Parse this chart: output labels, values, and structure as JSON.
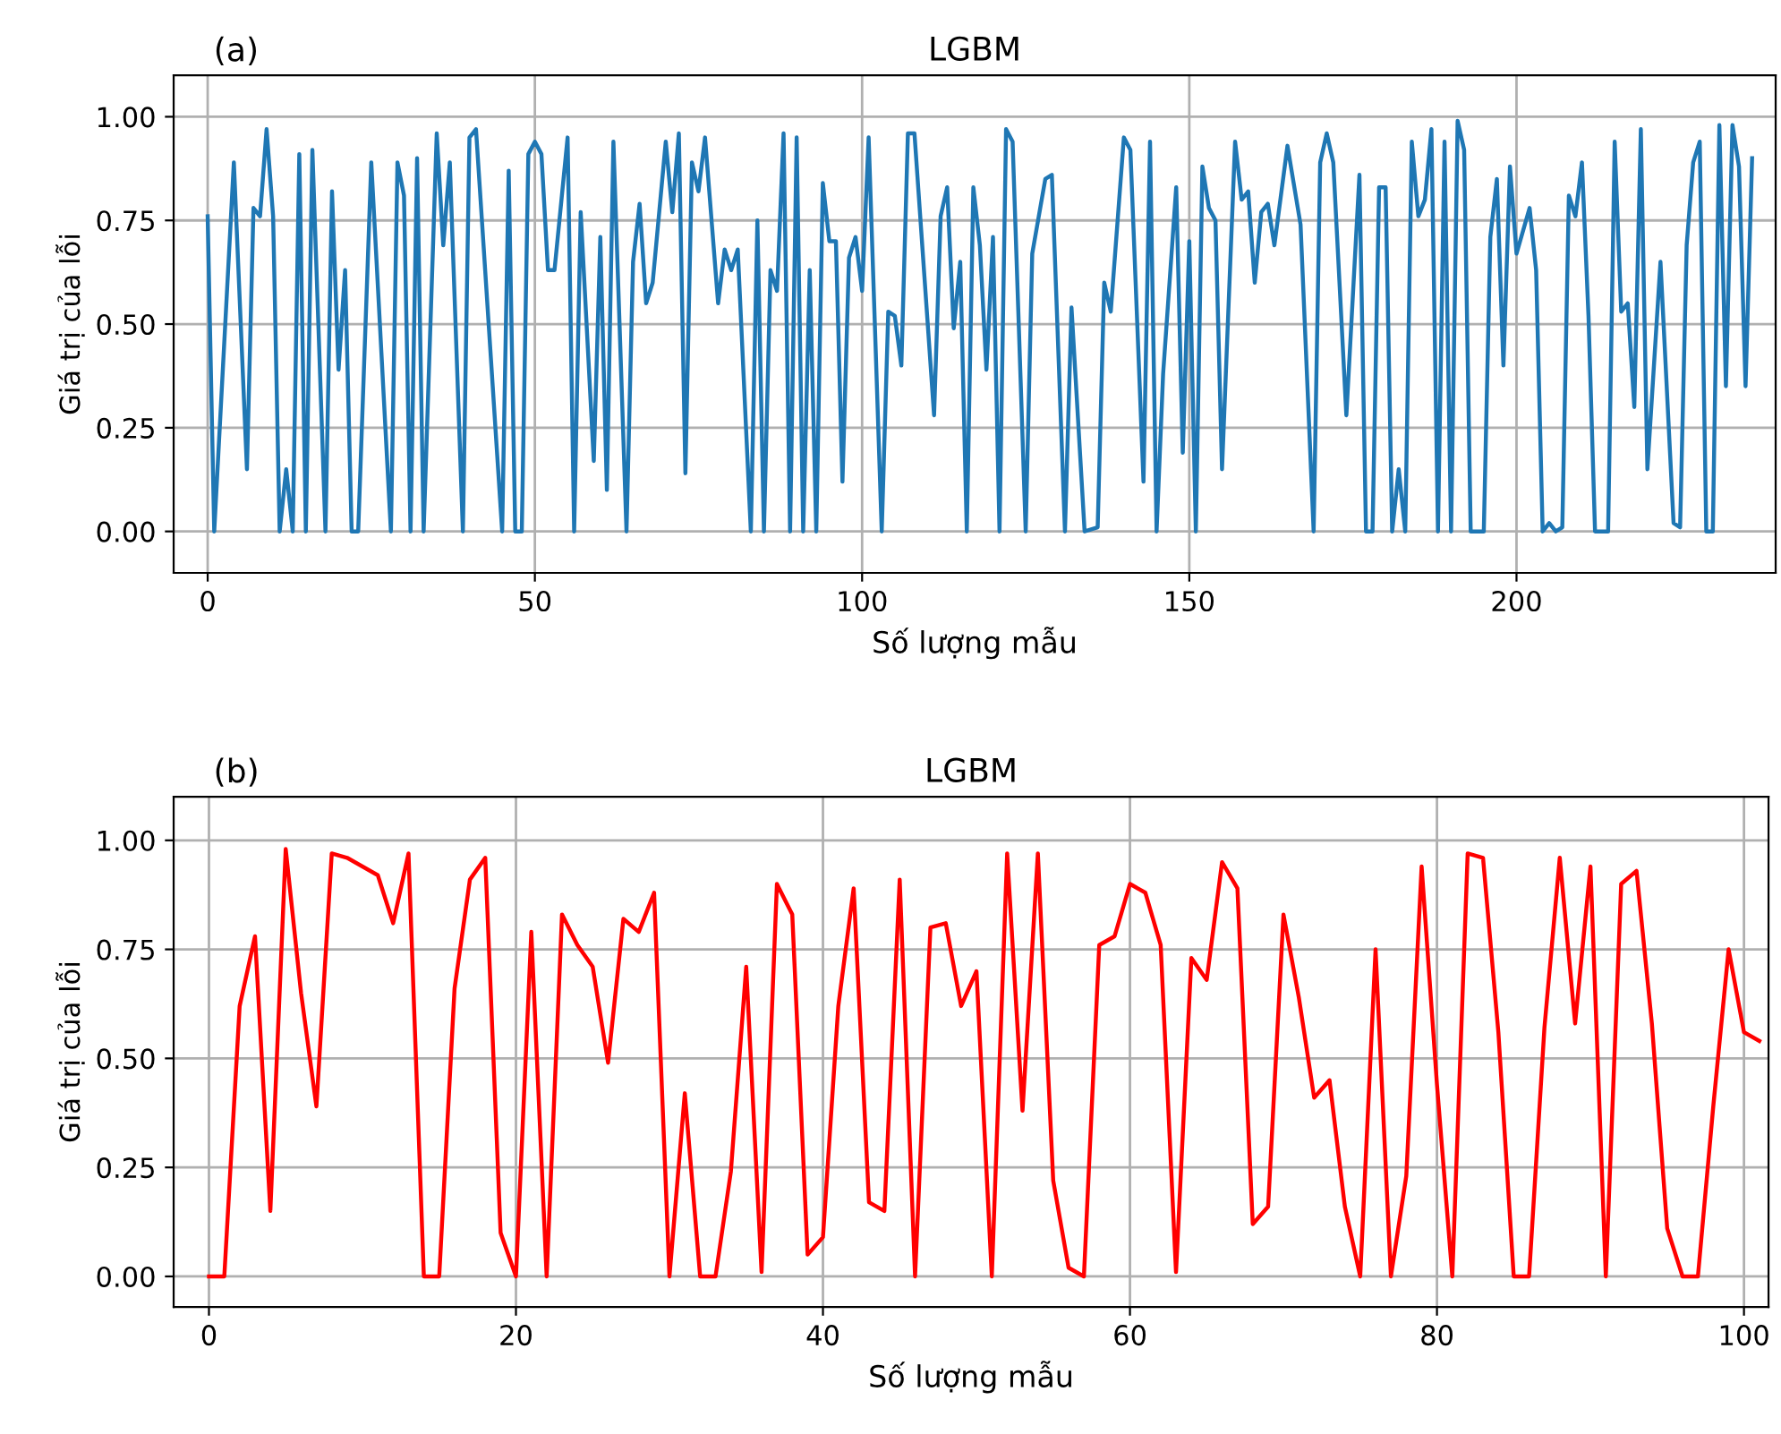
{
  "chart_data": [
    {
      "type": "line",
      "title": "LGBM",
      "annotations": [
        "(a)"
      ],
      "xlabel": "Số lượng mẫu",
      "ylabel": "Giá trị của lỗi",
      "xlim": [
        -5.2,
        239.6
      ],
      "ylim": [
        -0.1,
        1.1
      ],
      "xticks": [
        0,
        50,
        100,
        150,
        200
      ],
      "yticks": [
        {
          "value": 0,
          "label": "0.00"
        },
        {
          "value": 0.25,
          "label": "0.25"
        },
        {
          "value": 0.5,
          "label": "0.50"
        },
        {
          "value": 0.75,
          "label": "0.75"
        },
        {
          "value": 1,
          "label": "1.00"
        }
      ],
      "grid": true,
      "series": [
        {
          "color": "#1f77b4",
          "x": [
            0,
            1,
            4,
            6,
            7,
            8,
            9,
            10,
            11,
            12,
            13,
            14,
            15,
            16,
            18,
            19,
            20,
            21,
            22,
            23,
            25,
            28,
            29,
            30,
            31,
            32,
            33,
            35,
            36,
            37,
            39,
            40,
            41,
            45,
            46,
            47,
            48,
            49,
            50,
            51,
            52,
            53,
            55,
            56,
            57,
            59,
            60,
            61,
            62,
            64,
            65,
            66,
            67,
            68,
            70,
            71,
            72,
            73,
            74,
            75,
            76,
            78,
            79,
            80,
            81,
            83,
            84,
            85,
            86,
            87,
            88,
            89,
            90,
            91,
            92,
            93,
            94,
            95,
            96,
            97,
            98,
            99,
            100,
            101,
            103,
            104,
            105,
            106,
            107,
            108,
            111,
            112,
            113,
            114,
            115,
            116,
            117,
            118,
            119,
            120,
            121,
            122,
            123,
            125,
            126,
            128,
            129,
            131,
            132,
            134,
            136,
            137,
            138,
            140,
            141,
            143,
            144,
            145,
            146,
            148,
            149,
            150,
            151,
            152,
            153,
            154,
            155,
            157,
            158,
            159,
            160,
            161,
            162,
            163,
            165,
            167,
            169,
            170,
            171,
            172,
            174,
            176,
            177,
            178,
            179,
            180,
            181,
            182,
            183,
            184,
            185,
            186,
            187,
            188,
            189,
            190,
            191,
            192,
            193,
            195,
            196,
            197,
            198,
            199,
            200,
            202,
            203,
            204,
            205,
            206,
            207,
            208,
            209,
            210,
            211,
            212,
            214,
            215,
            216,
            217,
            218,
            219,
            220,
            222,
            224,
            225,
            226,
            227,
            228,
            229,
            230,
            231,
            232,
            233,
            234,
            235,
            236
          ],
          "values": [
            0.76,
            0,
            0.89,
            0.15,
            0.78,
            0.76,
            0.97,
            0.76,
            0,
            0.15,
            0,
            0.91,
            0,
            0.92,
            0,
            0.82,
            0.39,
            0.63,
            0,
            0,
            0.89,
            0,
            0.89,
            0.81,
            0,
            0.9,
            0,
            0.96,
            0.69,
            0.89,
            0,
            0.95,
            0.97,
            0,
            0.87,
            0,
            0,
            0.91,
            0.94,
            0.91,
            0.63,
            0.63,
            0.95,
            0,
            0.77,
            0.17,
            0.71,
            0.1,
            0.94,
            0,
            0.65,
            0.79,
            0.55,
            0.6,
            0.94,
            0.77,
            0.96,
            0.14,
            0.89,
            0.82,
            0.95,
            0.55,
            0.68,
            0.63,
            0.68,
            0,
            0.75,
            0,
            0.63,
            0.58,
            0.96,
            0,
            0.95,
            0,
            0.63,
            0,
            0.84,
            0.7,
            0.7,
            0.12,
            0.66,
            0.71,
            0.58,
            0.95,
            0,
            0.53,
            0.52,
            0.4,
            0.96,
            0.96,
            0.28,
            0.76,
            0.83,
            0.49,
            0.65,
            0,
            0.83,
            0.69,
            0.39,
            0.71,
            0,
            0.97,
            0.94,
            0,
            0.67,
            0.85,
            0.86,
            0,
            0.54,
            0,
            0.01,
            0.6,
            0.53,
            0.95,
            0.92,
            0.12,
            0.94,
            0,
            0.38,
            0.83,
            0.19,
            0.7,
            0,
            0.88,
            0.78,
            0.75,
            0.15,
            0.94,
            0.8,
            0.82,
            0.6,
            0.77,
            0.79,
            0.69,
            0.93,
            0.74,
            0,
            0.89,
            0.96,
            0.89,
            0.28,
            0.86,
            0,
            0,
            0.83,
            0.83,
            0,
            0.15,
            0,
            0.94,
            0.76,
            0.8,
            0.97,
            0,
            0.94,
            0,
            0.99,
            0.92,
            0,
            0,
            0.71,
            0.85,
            0.4,
            0.88,
            0.67,
            0.78,
            0.63,
            0,
            0.02,
            0,
            0.01,
            0.81,
            0.76,
            0.89,
            0.52,
            0,
            0,
            0.94,
            0.53,
            0.55,
            0.3,
            0.97,
            0.15,
            0.65,
            0.02,
            0.01,
            0.69,
            0.89,
            0.94,
            0,
            0,
            0.98,
            0.35,
            0.98,
            0.88,
            0.35,
            0.9
          ]
        }
      ]
    },
    {
      "type": "line",
      "title": "LGBM",
      "annotations": [
        "(b)"
      ],
      "xlabel": "Số lượng mẫu",
      "ylabel": "Giá trị của lỗi",
      "xlim": [
        -2.3,
        101.6
      ],
      "ylim": [
        -0.07,
        1.1
      ],
      "xticks": [
        0,
        20,
        40,
        60,
        80,
        100
      ],
      "yticks": [
        {
          "value": 0,
          "label": "0.00"
        },
        {
          "value": 0.25,
          "label": "0.25"
        },
        {
          "value": 0.5,
          "label": "0.50"
        },
        {
          "value": 0.75,
          "label": "0.75"
        },
        {
          "value": 1,
          "label": "1.00"
        }
      ],
      "grid": true,
      "series": [
        {
          "color": "#ff0000",
          "x": [
            0,
            1,
            2,
            3,
            4,
            5,
            6,
            7,
            8,
            9,
            10,
            11,
            12,
            13,
            14,
            15,
            16,
            17,
            18,
            19,
            20,
            21,
            22,
            23,
            24,
            25,
            26,
            27,
            28,
            29,
            30,
            31,
            32,
            33,
            34,
            35,
            36,
            37,
            38,
            39,
            40,
            41,
            42,
            43,
            44,
            45,
            46,
            47,
            48,
            49,
            50,
            51,
            52,
            53,
            54,
            55,
            56,
            57,
            58,
            59,
            60,
            61,
            62,
            63,
            64,
            65,
            66,
            67,
            68,
            69,
            70,
            71,
            72,
            73,
            74,
            75,
            76,
            77,
            78,
            79,
            80,
            81,
            82,
            83,
            84,
            85,
            86,
            87,
            88,
            89,
            90,
            91,
            92,
            93,
            94,
            95,
            96,
            97,
            98,
            99,
            100,
            101
          ],
          "values": [
            0,
            0,
            0.62,
            0.78,
            0.15,
            0.98,
            0.65,
            0.39,
            0.97,
            0.96,
            0.94,
            0.92,
            0.81,
            0.97,
            0,
            0,
            0.66,
            0.91,
            0.96,
            0.1,
            0,
            0.79,
            0,
            0.83,
            0.76,
            0.71,
            0.49,
            0.82,
            0.79,
            0.88,
            0,
            0.42,
            0,
            0,
            0.24,
            0.71,
            0.01,
            0.9,
            0.83,
            0.05,
            0.09,
            0.62,
            0.89,
            0.17,
            0.15,
            0.91,
            0,
            0.8,
            0.81,
            0.62,
            0.7,
            0,
            0.97,
            0.38,
            0.97,
            0.22,
            0.02,
            0,
            0.76,
            0.78,
            0.9,
            0.88,
            0.76,
            0.01,
            0.73,
            0.68,
            0.95,
            0.89,
            0.12,
            0.16,
            0.83,
            0.64,
            0.41,
            0.45,
            0.16,
            0,
            0.75,
            0,
            0.23,
            0.94,
            0.44,
            0,
            0.97,
            0.96,
            0.56,
            0,
            0,
            0.57,
            0.96,
            0.58,
            0.94,
            0,
            0.9,
            0.93,
            0.58,
            0.11,
            0,
            0,
            0.39,
            0.75,
            0.56,
            0.54
          ]
        }
      ]
    }
  ]
}
